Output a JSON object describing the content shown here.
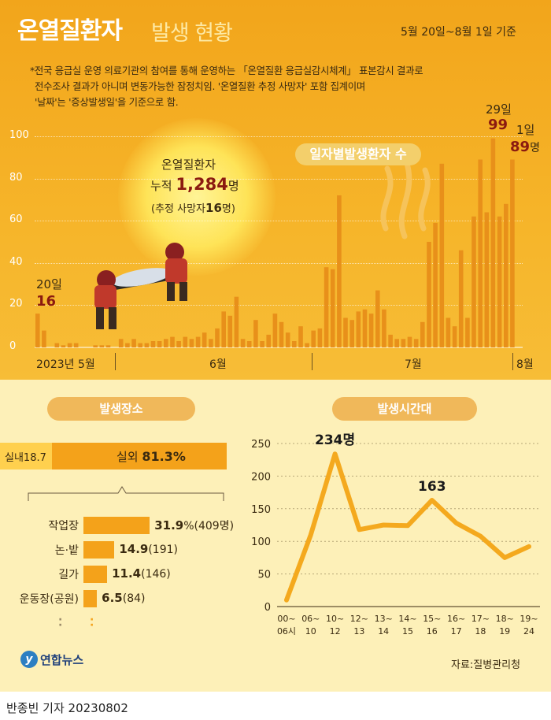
{
  "header": {
    "title_main": "온열질환자",
    "title_sub": "발생 현황",
    "period": "5월 20일~8월 1일 기준",
    "notes": [
      "*전국 응급실 운영 의료기관의 참여를 통해 운영하는 「온열질환 응급실감시체계」 표본감시 결과로",
      "전수조사 결과가 아니며 변동가능한 잠정치임.  '온열질환 추정 사망자' 포함 집계이며",
      "'날짜'는 '증상발생일'을 기준으로 함."
    ]
  },
  "sun_text": {
    "line1": "온열질환자",
    "prefix": "누적 ",
    "total": "1,284",
    "unit": "명",
    "death_prefix": "(추정 사망자",
    "death_value": "16",
    "death_suffix": "명)"
  },
  "legend_label": "일자별발생환자 수",
  "callouts": {
    "first_date": "20일",
    "first_value": "16",
    "peak_date": "29일",
    "peak_value": "99",
    "last_date": "1일",
    "last_value": "89",
    "last_unit": "명"
  },
  "month_labels": [
    "2023년 5월",
    "6월",
    "7월",
    "8월"
  ],
  "place_section": {
    "title": "발생장소",
    "indoor_label": "실내18.7",
    "outdoor_prefix": "실외 ",
    "outdoor_value": "81.3%",
    "breakdown": [
      {
        "label": "작업장",
        "value": "31.9",
        "suffix": "%(409명)",
        "pct": 31.9
      },
      {
        "label": "논·밭",
        "value": "14.9",
        "suffix": "(191)",
        "pct": 14.9
      },
      {
        "label": "길가",
        "value": "11.4",
        "suffix": "(146)",
        "pct": 11.4
      },
      {
        "label": "운동장(공원)",
        "value": "6.5",
        "suffix": "(84)",
        "pct": 6.5
      }
    ]
  },
  "time_section": {
    "title": "발생시간대",
    "peak_label": "234명",
    "second_label": "163"
  },
  "footer": {
    "source": "자료:질병관리청",
    "logo_text": "연합뉴스",
    "byline": "반종빈 기자  20230802"
  },
  "colors": {
    "bar": "#f4a21a",
    "bar_dark": "#e8901a",
    "line": "#f4a91e",
    "accent_red": "#8b1a10"
  },
  "chart_data": [
    {
      "type": "bar",
      "title": "일자별발생환자 수",
      "x_start": "2023-05-20",
      "x_end": "2023-08-01",
      "x_tick_labels": [
        "2023년 5월",
        "6월",
        "7월",
        "8월"
      ],
      "ylim": [
        0,
        100
      ],
      "y_ticks": [
        0,
        20,
        40,
        60,
        80,
        100
      ],
      "values": [
        16,
        8,
        0,
        2,
        1,
        2,
        2,
        0,
        0,
        1,
        1,
        1,
        0,
        4,
        2,
        4,
        2,
        2,
        3,
        3,
        4,
        5,
        3,
        5,
        4,
        5,
        7,
        4,
        9,
        17,
        15,
        24,
        4,
        3,
        13,
        3,
        6,
        16,
        12,
        7,
        3,
        10,
        2,
        8,
        9,
        38,
        37,
        72,
        14,
        13,
        17,
        18,
        16,
        27,
        18,
        6,
        4,
        4,
        5,
        4,
        12,
        50,
        59,
        87,
        14,
        10,
        46,
        14,
        62,
        89,
        64,
        99,
        62,
        68,
        89
      ]
    },
    {
      "type": "bar",
      "title": "발생장소",
      "categories": [
        "작업장",
        "논·밭",
        "길가",
        "운동장(공원)"
      ],
      "values": [
        31.9,
        14.9,
        11.4,
        6.5
      ],
      "counts": [
        409,
        191,
        146,
        84
      ],
      "split": {
        "실내": 18.7,
        "실외": 81.3
      }
    },
    {
      "type": "line",
      "title": "발생시간대",
      "categories": [
        "00~06시",
        "06~10",
        "10~12",
        "12~13",
        "13~14",
        "14~15",
        "15~16",
        "16~17",
        "17~18",
        "18~19",
        "19~24"
      ],
      "values": [
        10,
        110,
        234,
        118,
        125,
        124,
        163,
        128,
        108,
        75,
        92
      ],
      "ylim": [
        0,
        250
      ],
      "y_ticks": [
        0,
        50,
        100,
        150,
        200,
        250
      ]
    }
  ]
}
